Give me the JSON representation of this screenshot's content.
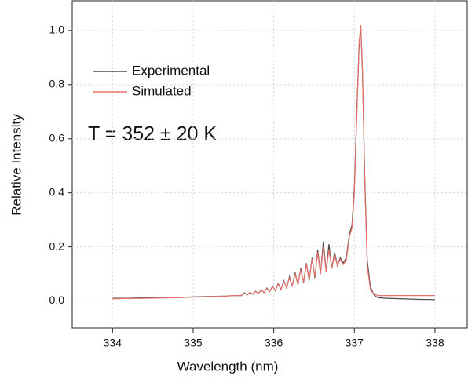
{
  "chart_data": {
    "type": "line",
    "xlabel": "Wavelength (nm)",
    "ylabel": "Relative Intensity",
    "annotation": "T = 352 ± 20 K",
    "legend": "upper left",
    "grid": true,
    "xlim": [
      333.5,
      338.4
    ],
    "xticks": [
      334,
      335,
      336,
      337,
      338
    ],
    "ylim": [
      -0.1,
      1.11
    ],
    "yticks": [
      {
        "value": 0,
        "label": "0,0"
      },
      {
        "value": 0.2,
        "label": "0,2"
      },
      {
        "value": 0.4,
        "label": "0,4"
      },
      {
        "value": 0.6,
        "label": "0,6"
      },
      {
        "value": 0.8,
        "label": "0,8"
      },
      {
        "value": 1.0,
        "label": "1,0"
      }
    ],
    "x": [
      334.0,
      334.2,
      334.4,
      334.6,
      334.8,
      335.0,
      335.2,
      335.4,
      335.5,
      335.6,
      335.635,
      335.67,
      335.705,
      335.74,
      335.775,
      335.81,
      335.845,
      335.88,
      335.915,
      335.95,
      335.985,
      336.02,
      336.055,
      336.09,
      336.125,
      336.16,
      336.195,
      336.23,
      336.265,
      336.3,
      336.335,
      336.37,
      336.405,
      336.44,
      336.475,
      336.51,
      336.545,
      336.58,
      336.615,
      336.65,
      336.685,
      336.72,
      336.755,
      336.79,
      336.825,
      336.86,
      336.9,
      336.94,
      336.97,
      337.0,
      337.03,
      337.06,
      337.08,
      337.1,
      337.13,
      337.16,
      337.2,
      337.25,
      337.3,
      337.4,
      337.6,
      337.8,
      338.0
    ],
    "series": [
      {
        "name": "Experimental",
        "color": "#4a4a4a",
        "values": [
          0.01,
          0.01,
          0.012,
          0.012,
          0.013,
          0.015,
          0.017,
          0.018,
          0.02,
          0.02,
          0.03,
          0.022,
          0.032,
          0.025,
          0.036,
          0.028,
          0.042,
          0.031,
          0.048,
          0.035,
          0.055,
          0.038,
          0.065,
          0.042,
          0.075,
          0.048,
          0.09,
          0.055,
          0.105,
          0.06,
          0.12,
          0.068,
          0.14,
          0.075,
          0.16,
          0.085,
          0.19,
          0.1,
          0.22,
          0.11,
          0.21,
          0.12,
          0.18,
          0.13,
          0.16,
          0.14,
          0.16,
          0.25,
          0.28,
          0.42,
          0.7,
          0.95,
          1.01,
          0.85,
          0.45,
          0.15,
          0.05,
          0.02,
          0.012,
          0.01,
          0.008,
          0.006,
          0.005
        ]
      },
      {
        "name": "Simulated",
        "color": "#e8706a",
        "values": [
          0.008,
          0.009,
          0.01,
          0.011,
          0.012,
          0.014,
          0.016,
          0.018,
          0.02,
          0.021,
          0.028,
          0.023,
          0.031,
          0.026,
          0.035,
          0.029,
          0.04,
          0.032,
          0.046,
          0.035,
          0.053,
          0.039,
          0.062,
          0.043,
          0.072,
          0.049,
          0.085,
          0.056,
          0.1,
          0.062,
          0.115,
          0.07,
          0.135,
          0.078,
          0.155,
          0.088,
          0.18,
          0.1,
          0.2,
          0.11,
          0.19,
          0.12,
          0.17,
          0.13,
          0.155,
          0.135,
          0.15,
          0.24,
          0.27,
          0.4,
          0.68,
          0.96,
          1.02,
          0.86,
          0.43,
          0.13,
          0.04,
          0.025,
          0.02,
          0.02,
          0.02,
          0.02,
          0.02
        ]
      }
    ]
  }
}
